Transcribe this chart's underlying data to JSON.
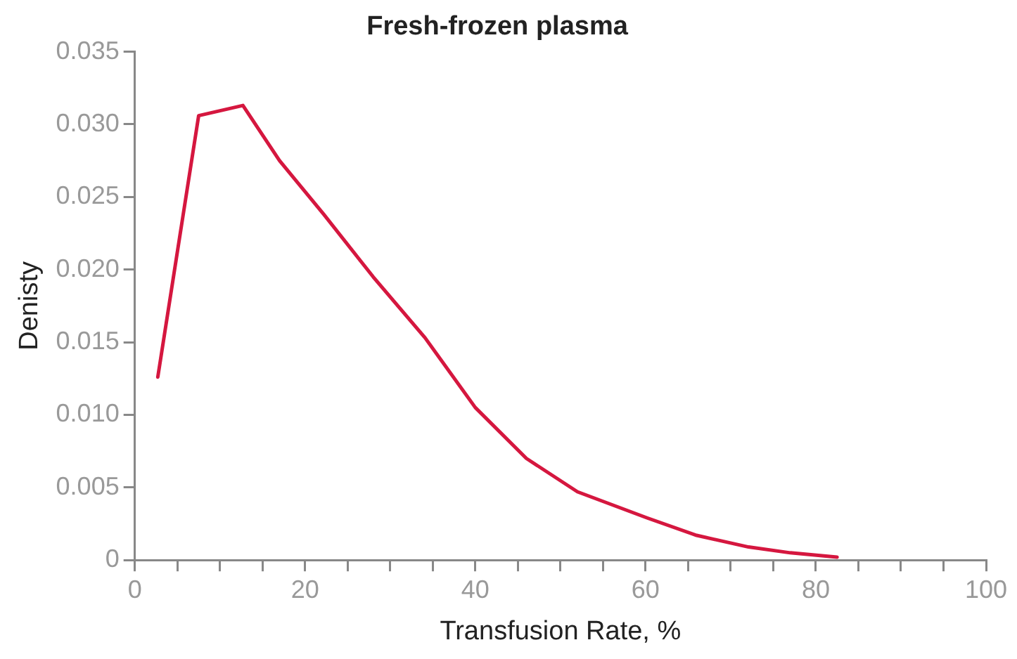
{
  "chart_data": {
    "type": "line",
    "title": "Fresh-frozen plasma",
    "xlabel": "Transfusion Rate, %",
    "ylabel": "Denisty",
    "x": [
      2.7,
      7.5,
      12.7,
      17,
      22.2,
      28,
      34.1,
      40,
      46,
      52,
      60.2,
      66,
      72.1,
      77,
      82.5
    ],
    "series": [
      {
        "color": "#d5173f",
        "values": [
          0.0126,
          0.0306,
          0.0313,
          0.0275,
          0.0238,
          0.0195,
          0.0153,
          0.0105,
          0.007,
          0.0047,
          0.0029,
          0.0017,
          0.0009,
          0.0005,
          0.0002
        ]
      }
    ],
    "xlim": [
      0,
      100
    ],
    "ylim": [
      0,
      0.035
    ],
    "xticks": [
      0,
      {
        "value": 5,
        "label": null
      },
      {
        "value": 10,
        "label": null
      },
      {
        "value": 15,
        "label": null
      },
      20,
      {
        "value": 25,
        "label": null
      },
      {
        "value": 30,
        "label": null
      },
      {
        "value": 35,
        "label": null
      },
      40,
      {
        "value": 45,
        "label": null
      },
      {
        "value": 50,
        "label": null
      },
      {
        "value": 55,
        "label": null
      },
      60,
      {
        "value": 65,
        "label": null
      },
      {
        "value": 70,
        "label": null
      },
      {
        "value": 75,
        "label": null
      },
      80,
      {
        "value": 85,
        "label": null
      },
      {
        "value": 90,
        "label": null
      },
      {
        "value": 95,
        "label": null
      },
      100
    ],
    "yticks": [
      {
        "value": 0,
        "label": "0"
      },
      {
        "value": 0.005,
        "label": "0.005"
      },
      {
        "value": 0.01,
        "label": "0.010"
      },
      {
        "value": 0.015,
        "label": "0.015"
      },
      {
        "value": 0.02,
        "label": "0.020"
      },
      {
        "value": 0.025,
        "label": "0.025"
      },
      {
        "value": 0.03,
        "label": "0.030"
      },
      {
        "value": 0.035,
        "label": "0.035"
      }
    ],
    "grid": false,
    "legend": false,
    "marker": "none",
    "line_style": "solid"
  }
}
